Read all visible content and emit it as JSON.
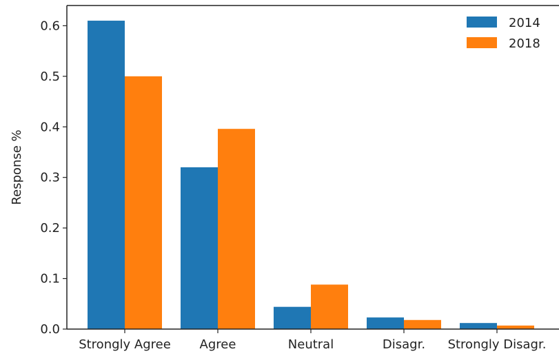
{
  "chart_data": {
    "type": "bar",
    "title": "",
    "xlabel": "",
    "ylabel": "Response %",
    "categories": [
      "Strongly Agree",
      "Agree",
      "Neutral",
      "Disagr.",
      "Strongly Disagr."
    ],
    "series": [
      {
        "name": "2014",
        "values": [
          0.61,
          0.32,
          0.044,
          0.023,
          0.012
        ],
        "color": "#1f77b4"
      },
      {
        "name": "2018",
        "values": [
          0.5,
          0.396,
          0.088,
          0.018,
          0.007
        ],
        "color": "#ff7f0e"
      }
    ],
    "ylim": [
      0,
      0.64
    ],
    "yticks": [
      "0.0",
      "0.1",
      "0.2",
      "0.3",
      "0.4",
      "0.5",
      "0.6"
    ],
    "grid": false,
    "legend_position": "top-right"
  }
}
